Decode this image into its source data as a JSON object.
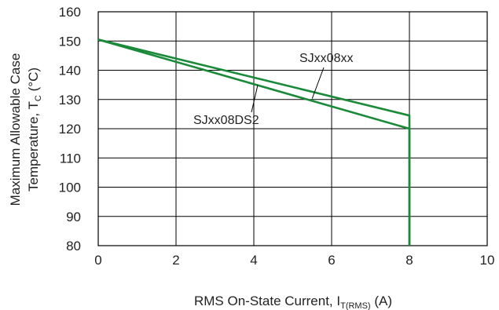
{
  "chart_data": {
    "type": "line",
    "xlim": [
      0,
      10
    ],
    "ylim": [
      80,
      160
    ],
    "x_ticks": [
      "0",
      "2",
      "4",
      "6",
      "8",
      "10"
    ],
    "y_ticks": [
      "80",
      "90",
      "100",
      "110",
      "120",
      "130",
      "140",
      "150",
      "160"
    ],
    "grid": true,
    "xlabel": {
      "main": "RMS On-State Current, I",
      "sub": "T(RMS)",
      "unit": " (A)"
    },
    "ylabel": {
      "line1": "Maximum Allowable Case",
      "line2_main": "Temperature, T",
      "line2_sub": "C",
      "line2_unit": " (°C)"
    },
    "series": [
      {
        "name": "SJxx08xx",
        "color": "#1a8a3a",
        "points": [
          [
            0,
            150.5
          ],
          [
            8,
            124.5
          ],
          [
            8,
            80
          ]
        ]
      },
      {
        "name": "SJxx08DS2",
        "color": "#1a8a3a",
        "points": [
          [
            0,
            150.5
          ],
          [
            8,
            120
          ],
          [
            8,
            80
          ]
        ]
      }
    ],
    "annotations": [
      {
        "text": "SJxx08xx",
        "pointer_data": [
          5.5,
          130.3
        ]
      },
      {
        "text": "SJxx08DS2",
        "pointer_data": [
          4.1,
          134.9
        ]
      }
    ]
  }
}
